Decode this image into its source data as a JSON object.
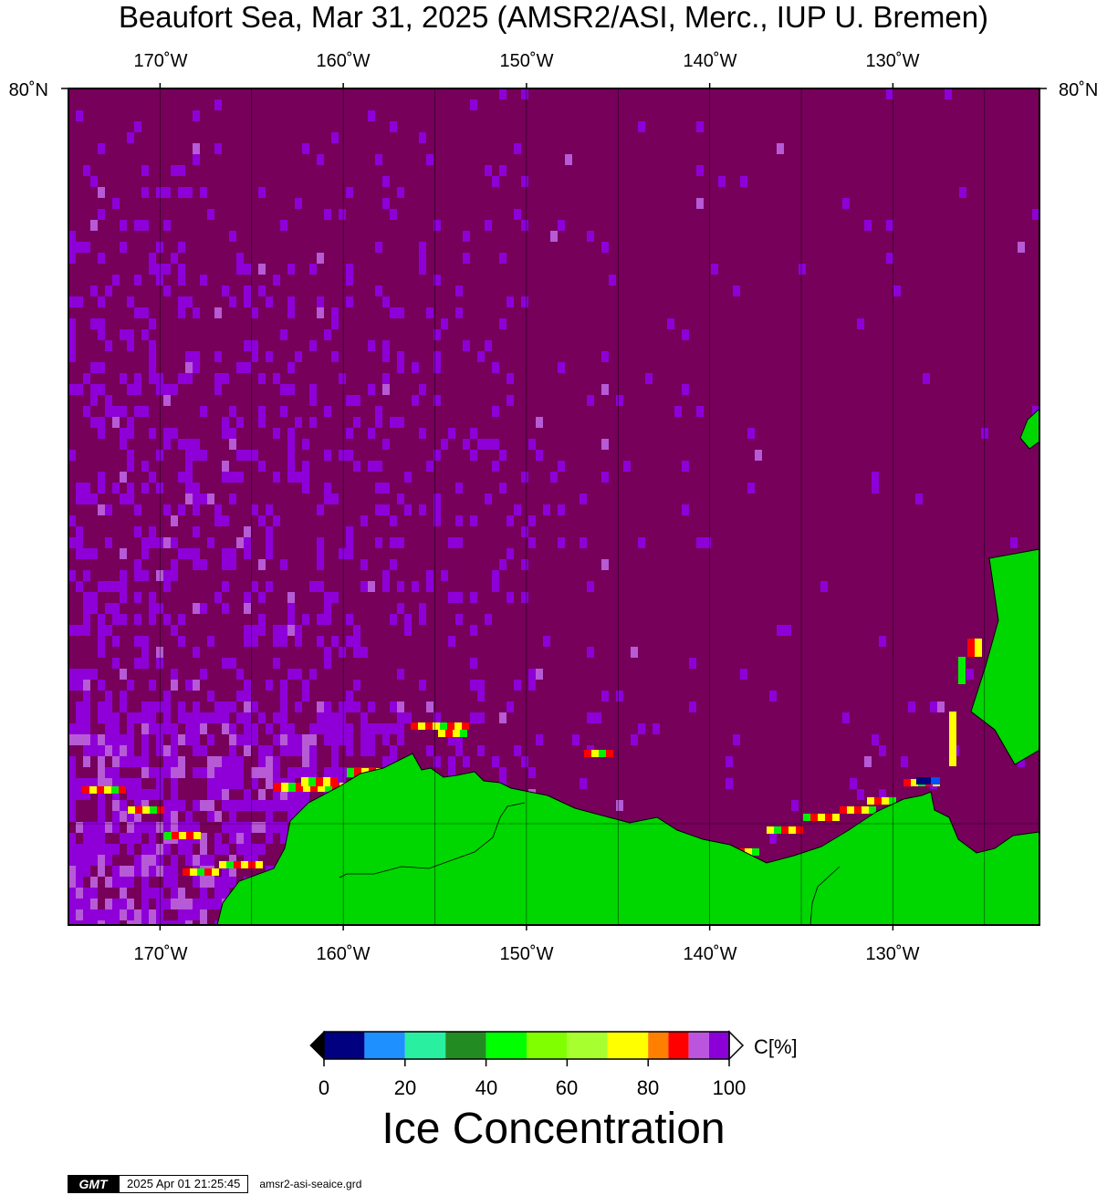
{
  "title": "Beaufort Sea, Mar 31, 2025 (AMSR2/ASI, Merc., IUP U. Bremen)",
  "axes": {
    "lon_ticks": [
      "170˚W",
      "160˚W",
      "150˚W",
      "140˚W",
      "130˚W"
    ],
    "lat_ticks": [
      "80˚N"
    ],
    "lon_range": [
      -175,
      -122
    ],
    "lat_top": 80
  },
  "colors": {
    "ocean_ice": "#76005a",
    "land": "#00d600",
    "high_ice": "#8f00d9",
    "light_purple": "#b75ad6",
    "red": "#ff0000",
    "yellow": "#ffff00",
    "green": "#00f000",
    "blue": "#0050ff",
    "navy": "#000080"
  },
  "colorbar": {
    "ticks": [
      "0",
      "20",
      "40",
      "60",
      "80",
      "100"
    ],
    "unit": "C[%]",
    "label": "Ice Concentration",
    "bins": [
      {
        "from": 0,
        "to": 10,
        "color": "#000080"
      },
      {
        "from": 10,
        "to": 20,
        "color": "#1e90ff"
      },
      {
        "from": 20,
        "to": 30,
        "color": "#28f0a0"
      },
      {
        "from": 30,
        "to": 40,
        "color": "#228b22"
      },
      {
        "from": 40,
        "to": 50,
        "color": "#00ff00"
      },
      {
        "from": 50,
        "to": 60,
        "color": "#80ff00"
      },
      {
        "from": 60,
        "to": 70,
        "color": "#a8ff30"
      },
      {
        "from": 70,
        "to": 80,
        "color": "#ffff00"
      },
      {
        "from": 80,
        "to": 85,
        "color": "#ff8000"
      },
      {
        "from": 85,
        "to": 90,
        "color": "#ff0000"
      },
      {
        "from": 90,
        "to": 95,
        "color": "#bb55dd"
      },
      {
        "from": 95,
        "to": 100,
        "color": "#8c00d8"
      }
    ]
  },
  "footer": {
    "logo": "GMT",
    "timestamp": "2025 Apr 01 21:25:45",
    "file": "amsr2-asi-seaice.grd"
  }
}
